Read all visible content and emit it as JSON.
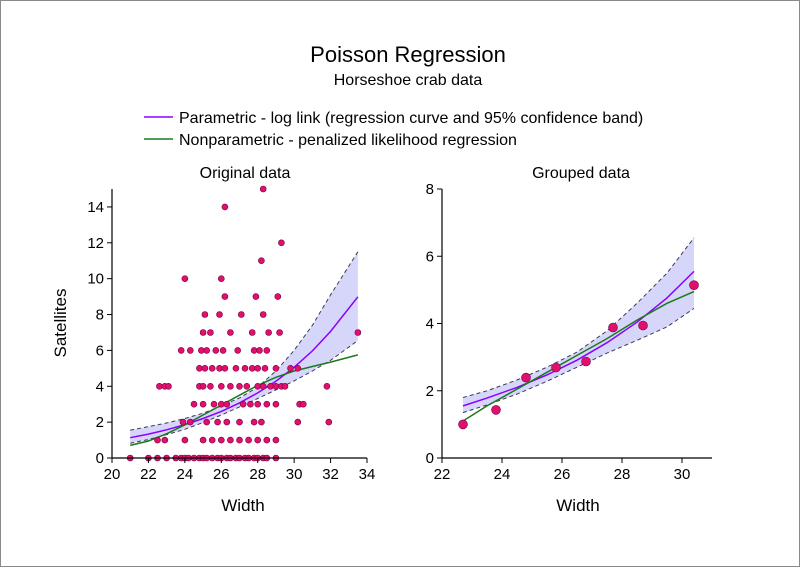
{
  "figure": {
    "title": "Poisson Regression",
    "subtitle": "Horseshoe crab data",
    "legend": [
      {
        "label": "Parametric - log link (regression curve and 95% confidence band)",
        "color": "#8b00ff"
      },
      {
        "label": "Nonparametric - penalized likelihood regression",
        "color": "#1a7a1a"
      }
    ],
    "colors": {
      "point_fill": "#e0106e",
      "point_edge": "#7a0040",
      "band": "#d6d6fa",
      "band_edge": "#3a3a55"
    }
  },
  "chart_data": [
    {
      "type": "scatter",
      "title": "Original data",
      "xlabel": "Width",
      "ylabel": "Satellites",
      "xlim": [
        20,
        34
      ],
      "ylim": [
        0,
        15
      ],
      "xticks": [
        "20",
        "22",
        "24",
        "26",
        "28",
        "30",
        "32",
        "34"
      ],
      "yticks": [
        "0",
        "2",
        "4",
        "6",
        "8",
        "10",
        "12",
        "14"
      ],
      "points": [
        [
          21.0,
          0
        ],
        [
          22.0,
          0
        ],
        [
          22.5,
          0
        ],
        [
          23.0,
          0
        ],
        [
          23.5,
          0
        ],
        [
          23.8,
          0
        ],
        [
          24.0,
          0
        ],
        [
          24.2,
          0
        ],
        [
          24.5,
          0
        ],
        [
          24.8,
          0
        ],
        [
          25.0,
          0
        ],
        [
          25.2,
          0
        ],
        [
          25.5,
          0
        ],
        [
          25.8,
          0
        ],
        [
          26.0,
          0
        ],
        [
          26.3,
          0
        ],
        [
          26.5,
          0
        ],
        [
          26.8,
          0
        ],
        [
          27.0,
          0
        ],
        [
          27.3,
          0
        ],
        [
          27.5,
          0
        ],
        [
          27.8,
          0
        ],
        [
          28.0,
          0
        ],
        [
          28.3,
          0
        ],
        [
          28.5,
          0
        ],
        [
          29.0,
          0
        ],
        [
          22.5,
          1
        ],
        [
          22.9,
          1
        ],
        [
          24.0,
          1
        ],
        [
          25.0,
          1
        ],
        [
          25.5,
          1
        ],
        [
          26.0,
          1
        ],
        [
          26.5,
          1
        ],
        [
          27.0,
          1
        ],
        [
          27.5,
          1
        ],
        [
          28.0,
          1
        ],
        [
          28.5,
          1
        ],
        [
          29.0,
          1
        ],
        [
          23.9,
          2
        ],
        [
          24.3,
          2
        ],
        [
          25.2,
          2
        ],
        [
          25.8,
          2
        ],
        [
          26.3,
          2
        ],
        [
          27.0,
          2
        ],
        [
          27.8,
          2
        ],
        [
          28.2,
          2
        ],
        [
          30.2,
          2
        ],
        [
          31.9,
          2
        ],
        [
          24.5,
          3
        ],
        [
          25.0,
          3
        ],
        [
          25.6,
          3
        ],
        [
          26.0,
          3
        ],
        [
          26.3,
          3
        ],
        [
          27.2,
          3
        ],
        [
          27.6,
          3
        ],
        [
          28.0,
          3
        ],
        [
          28.5,
          3
        ],
        [
          29.0,
          3
        ],
        [
          30.3,
          3
        ],
        [
          30.5,
          3
        ],
        [
          22.6,
          4
        ],
        [
          22.9,
          4
        ],
        [
          23.1,
          4
        ],
        [
          24.8,
          4
        ],
        [
          25.0,
          4
        ],
        [
          25.4,
          4
        ],
        [
          26.0,
          4
        ],
        [
          26.5,
          4
        ],
        [
          27.0,
          4
        ],
        [
          27.4,
          4
        ],
        [
          28.0,
          4
        ],
        [
          28.3,
          4
        ],
        [
          28.7,
          4
        ],
        [
          29.0,
          4
        ],
        [
          29.3,
          4
        ],
        [
          29.5,
          4
        ],
        [
          31.8,
          4
        ],
        [
          24.8,
          5
        ],
        [
          25.1,
          5
        ],
        [
          25.5,
          5
        ],
        [
          25.9,
          5
        ],
        [
          26.2,
          5
        ],
        [
          26.8,
          5
        ],
        [
          27.3,
          5
        ],
        [
          27.7,
          5
        ],
        [
          28.0,
          5
        ],
        [
          28.4,
          5
        ],
        [
          29.0,
          5
        ],
        [
          29.8,
          5
        ],
        [
          30.2,
          5
        ],
        [
          23.8,
          6
        ],
        [
          24.3,
          6
        ],
        [
          24.9,
          6
        ],
        [
          25.2,
          6
        ],
        [
          25.7,
          6
        ],
        [
          26.1,
          6
        ],
        [
          26.9,
          6
        ],
        [
          27.8,
          6
        ],
        [
          28.1,
          6
        ],
        [
          28.5,
          6
        ],
        [
          33.5,
          7
        ],
        [
          25.0,
          7
        ],
        [
          25.4,
          7
        ],
        [
          26.5,
          7
        ],
        [
          27.7,
          7
        ],
        [
          28.6,
          7
        ],
        [
          29.2,
          7
        ],
        [
          25.1,
          8
        ],
        [
          25.9,
          8
        ],
        [
          27.1,
          8
        ],
        [
          28.3,
          8
        ],
        [
          26.2,
          9
        ],
        [
          27.9,
          9
        ],
        [
          29.1,
          9
        ],
        [
          24.0,
          10
        ],
        [
          26.0,
          10
        ],
        [
          28.2,
          11
        ],
        [
          29.3,
          12
        ],
        [
          26.2,
          14
        ],
        [
          28.3,
          15
        ]
      ],
      "series": [
        {
          "name": "Parametric - log link (regression curve and 95% confidence band)",
          "x": [
            21,
            22,
            23,
            24,
            25,
            26,
            27,
            28,
            29,
            30,
            31,
            32,
            33.5
          ],
          "y": [
            1.13,
            1.33,
            1.57,
            1.86,
            2.2,
            2.6,
            3.07,
            3.63,
            4.28,
            5.06,
            5.97,
            7.06,
            8.99
          ]
        },
        {
          "name": "Nonparametric - penalized likelihood regression",
          "x": [
            21,
            22,
            23,
            24,
            25,
            26,
            27,
            28,
            29,
            30,
            31,
            32,
            33.5
          ],
          "y": [
            0.7,
            0.95,
            1.35,
            1.85,
            2.4,
            2.95,
            3.5,
            4.05,
            4.5,
            4.85,
            5.1,
            5.35,
            5.75
          ]
        },
        {
          "name": "95% confidence band lower",
          "x": [
            21,
            22,
            23,
            24,
            25,
            26,
            27,
            28,
            29,
            30,
            31,
            32,
            33.5
          ],
          "y": [
            0.82,
            1.03,
            1.3,
            1.6,
            1.98,
            2.4,
            2.85,
            3.32,
            3.8,
            4.3,
            4.85,
            5.45,
            6.55
          ]
        },
        {
          "name": "95% confidence band upper",
          "x": [
            21,
            22,
            23,
            24,
            25,
            26,
            27,
            28,
            29,
            30,
            31,
            32,
            33.5
          ],
          "y": [
            1.55,
            1.75,
            1.95,
            2.2,
            2.5,
            2.9,
            3.35,
            3.95,
            4.85,
            6.0,
            7.4,
            9.1,
            11.5
          ]
        }
      ]
    },
    {
      "type": "scatter",
      "title": "Grouped data",
      "xlabel": "Width",
      "ylabel": "",
      "xlim": [
        22,
        31
      ],
      "ylim": [
        0,
        8
      ],
      "xticks": [
        "22",
        "24",
        "26",
        "28",
        "30"
      ],
      "yticks": [
        "0",
        "2",
        "4",
        "6",
        "8"
      ],
      "points": [
        [
          22.7,
          1.0
        ],
        [
          23.8,
          1.43
        ],
        [
          24.8,
          2.39
        ],
        [
          25.8,
          2.69
        ],
        [
          26.8,
          2.87
        ],
        [
          27.7,
          3.88
        ],
        [
          28.7,
          3.94
        ],
        [
          30.4,
          5.14
        ]
      ],
      "series": [
        {
          "name": "Parametric - log link (regression curve and 95% confidence band)",
          "x": [
            22.7,
            23.5,
            24.5,
            25.5,
            26.5,
            27.5,
            28.5,
            29.5,
            30.4
          ],
          "y": [
            1.55,
            1.78,
            2.1,
            2.47,
            2.91,
            3.43,
            4.04,
            4.76,
            5.55
          ]
        },
        {
          "name": "Nonparametric - penalized likelihood regression",
          "x": [
            22.7,
            23.5,
            24.5,
            25.5,
            26.5,
            27.5,
            28.5,
            29.5,
            30.4
          ],
          "y": [
            1.1,
            1.55,
            2.05,
            2.55,
            3.05,
            3.55,
            4.1,
            4.6,
            4.95
          ]
        },
        {
          "name": "95% confidence band lower",
          "x": [
            22.7,
            23.5,
            24.5,
            25.5,
            26.5,
            27.5,
            28.5,
            29.5,
            30.4
          ],
          "y": [
            1.35,
            1.58,
            1.9,
            2.28,
            2.7,
            3.12,
            3.5,
            3.9,
            4.45
          ]
        },
        {
          "name": "95% confidence band upper",
          "x": [
            22.7,
            23.5,
            24.5,
            25.5,
            26.5,
            27.5,
            28.5,
            29.5,
            30.4
          ],
          "y": [
            1.8,
            2.0,
            2.32,
            2.7,
            3.15,
            3.78,
            4.6,
            5.5,
            6.55
          ]
        }
      ]
    }
  ]
}
